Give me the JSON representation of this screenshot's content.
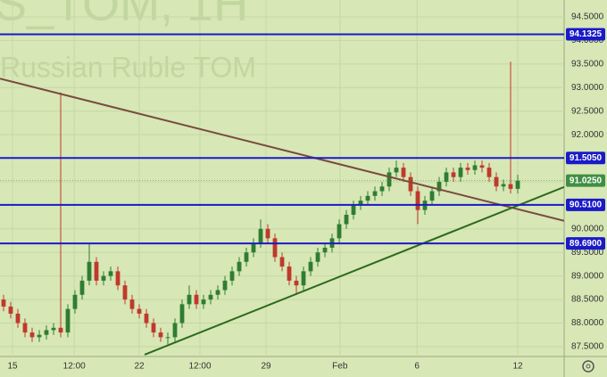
{
  "chart_data": {
    "type": "candlestick",
    "title": "S_TOM, 1H",
    "subtitle": "Russian Ruble TOM",
    "up_color": "#2f7d32",
    "down_color": "#c0392b",
    "open": [
      88.5,
      88.35,
      88.2,
      88.0,
      87.8,
      87.7,
      87.75,
      87.85,
      87.9,
      87.8,
      88.3,
      88.6,
      88.9,
      89.3,
      88.9,
      89.0,
      89.1,
      88.8,
      88.5,
      88.3,
      88.2,
      88.0,
      87.8,
      87.7,
      87.7,
      88.0,
      88.4,
      88.6,
      88.4,
      88.5,
      88.6,
      88.7,
      88.9,
      89.1,
      89.3,
      89.5,
      89.7,
      90.0,
      89.8,
      89.4,
      89.2,
      88.9,
      88.8,
      89.1,
      89.3,
      89.5,
      89.6,
      89.8,
      90.1,
      90.3,
      90.5,
      90.6,
      90.7,
      90.8,
      90.9,
      91.2,
      91.3,
      91.1,
      90.8,
      90.4,
      90.6,
      90.8,
      91.0,
      91.2,
      91.1,
      91.3,
      91.25,
      91.35,
      91.3,
      91.1,
      90.9,
      90.95,
      90.85
    ],
    "high": [
      88.6,
      88.45,
      88.3,
      88.1,
      87.9,
      87.85,
      87.95,
      88.0,
      92.9,
      88.4,
      88.7,
      89.0,
      89.7,
      89.4,
      89.1,
      89.2,
      89.2,
      88.9,
      88.6,
      88.4,
      88.3,
      88.1,
      87.9,
      87.8,
      88.1,
      88.5,
      88.8,
      88.7,
      88.6,
      88.7,
      88.8,
      89.0,
      89.2,
      89.4,
      89.6,
      89.8,
      90.2,
      90.1,
      89.9,
      89.5,
      89.3,
      89.0,
      89.2,
      89.4,
      89.6,
      89.7,
      89.9,
      90.2,
      90.4,
      90.6,
      90.7,
      90.8,
      90.9,
      91.0,
      91.3,
      91.45,
      91.4,
      91.2,
      90.9,
      90.7,
      90.9,
      91.1,
      91.3,
      91.3,
      91.4,
      91.4,
      91.45,
      91.45,
      91.4,
      91.2,
      91.05,
      93.55,
      91.15
    ],
    "low": [
      88.25,
      88.1,
      87.9,
      87.7,
      87.6,
      87.6,
      87.65,
      87.75,
      87.7,
      87.7,
      88.2,
      88.5,
      88.8,
      88.8,
      88.8,
      88.9,
      88.7,
      88.4,
      88.2,
      88.1,
      87.9,
      87.7,
      87.6,
      87.55,
      87.6,
      87.9,
      88.3,
      88.3,
      88.3,
      88.4,
      88.5,
      88.6,
      88.8,
      89.0,
      89.2,
      89.4,
      89.6,
      89.7,
      89.3,
      89.1,
      88.8,
      88.6,
      88.7,
      89.0,
      89.2,
      89.4,
      89.5,
      89.7,
      90.0,
      90.2,
      90.4,
      90.5,
      90.6,
      90.7,
      90.8,
      91.1,
      91.0,
      90.7,
      90.1,
      90.3,
      90.5,
      90.7,
      90.9,
      91.0,
      91.0,
      91.15,
      91.15,
      91.2,
      91.0,
      90.8,
      90.8,
      90.75,
      90.75
    ],
    "close": [
      88.35,
      88.2,
      88.0,
      87.8,
      87.7,
      87.75,
      87.85,
      87.9,
      87.8,
      88.3,
      88.6,
      88.9,
      89.3,
      88.9,
      89.0,
      89.1,
      88.8,
      88.5,
      88.3,
      88.2,
      88.0,
      87.8,
      87.7,
      87.7,
      88.0,
      88.4,
      88.6,
      88.4,
      88.5,
      88.6,
      88.7,
      88.9,
      89.1,
      89.3,
      89.5,
      89.7,
      90.0,
      89.8,
      89.4,
      89.2,
      88.9,
      88.8,
      89.1,
      89.3,
      89.5,
      89.6,
      89.8,
      90.1,
      90.3,
      90.5,
      90.6,
      90.7,
      90.8,
      90.9,
      91.2,
      91.3,
      91.1,
      90.8,
      90.4,
      90.6,
      90.8,
      91.0,
      91.2,
      91.1,
      91.3,
      91.25,
      91.35,
      91.3,
      91.1,
      90.9,
      90.95,
      90.85,
      91.025
    ],
    "xlim": [
      -0.5,
      78.5
    ],
    "xticks": [
      {
        "value": 1.25,
        "label": "15"
      },
      {
        "value": 9.9,
        "label": "12:00"
      },
      {
        "value": 19,
        "label": "22"
      },
      {
        "value": 27.5,
        "label": "12:00"
      },
      {
        "value": 36.75,
        "label": "29"
      },
      {
        "value": 47.1,
        "label": "Feb"
      },
      {
        "value": 57.9,
        "label": "6"
      },
      {
        "value": 72,
        "label": "12"
      }
    ],
    "ylim": [
      87.29,
      94.86
    ],
    "yticks": [
      {
        "value": 87.5,
        "label": "87.5000"
      },
      {
        "value": 88,
        "label": "88.0000"
      },
      {
        "value": 88.5,
        "label": "88.5000"
      },
      {
        "value": 89,
        "label": "89.0000"
      },
      {
        "value": 89.5,
        "label": "89.5000"
      },
      {
        "value": 90,
        "label": "90.0000"
      },
      {
        "value": 90.5,
        "label": "90.5000"
      },
      {
        "value": 91,
        "label": "91.0000"
      },
      {
        "value": 91.5,
        "label": "91.5000"
      },
      {
        "value": 92,
        "label": "92.0000"
      },
      {
        "value": 92.5,
        "label": "92.5000"
      },
      {
        "value": 93,
        "label": "93.0000"
      },
      {
        "value": 93.5,
        "label": "93.5000"
      },
      {
        "value": 94,
        "label": "94.0000"
      },
      {
        "value": 94.5,
        "label": "94.5000"
      }
    ],
    "grid": true,
    "levels": [
      {
        "value": 94.1325,
        "label": "94.1325",
        "color": "#1a1ac8"
      },
      {
        "value": 91.505,
        "label": "91.5050",
        "color": "#1a1ac8"
      },
      {
        "value": 90.51,
        "label": "90.5100",
        "color": "#1a1ac8"
      },
      {
        "value": 89.69,
        "label": "89.6900",
        "color": "#1a1ac8"
      }
    ],
    "price_label": {
      "value": 91.025,
      "label": "91.0250",
      "color": "#3f8f43"
    },
    "trendlines": [
      {
        "x": [
          -0.5,
          78.5
        ],
        "y": [
          93.19,
          90.17
        ],
        "color": "#7a4a3e"
      },
      {
        "x": [
          19.75,
          78.5
        ],
        "y": [
          87.33,
          90.89
        ],
        "color": "#2c6a1c"
      }
    ]
  }
}
